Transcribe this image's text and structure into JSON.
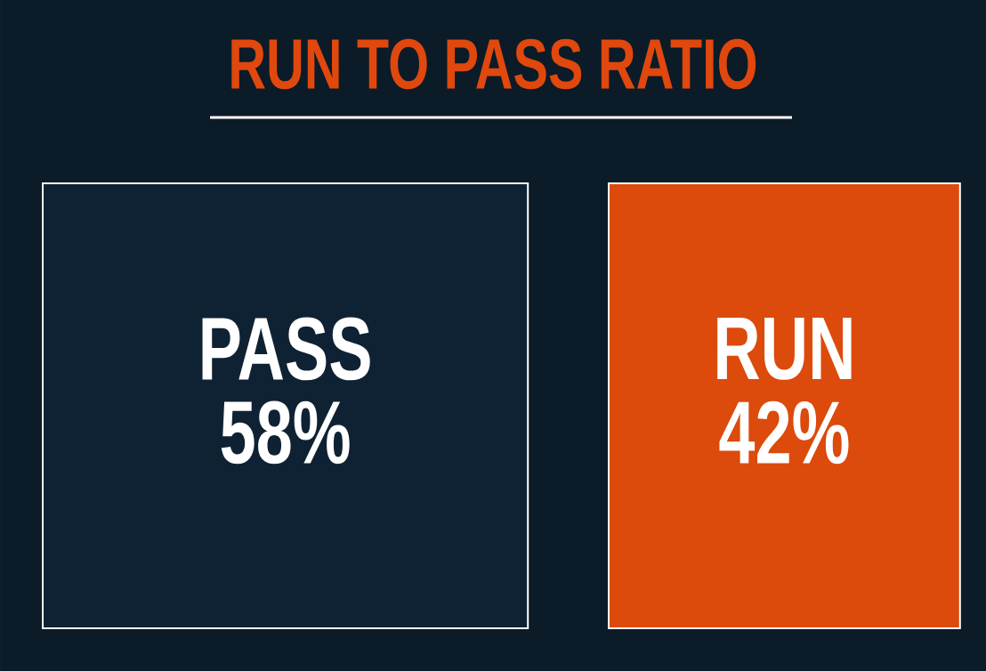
{
  "chart_data": {
    "type": "other",
    "title": "RUN TO PASS RATIO",
    "categories": [
      "PASS",
      "RUN"
    ],
    "values": [
      58,
      42
    ],
    "value_labels": [
      "58%",
      "42%"
    ],
    "colors": [
      "#0f2234",
      "#dc4a0c"
    ]
  }
}
